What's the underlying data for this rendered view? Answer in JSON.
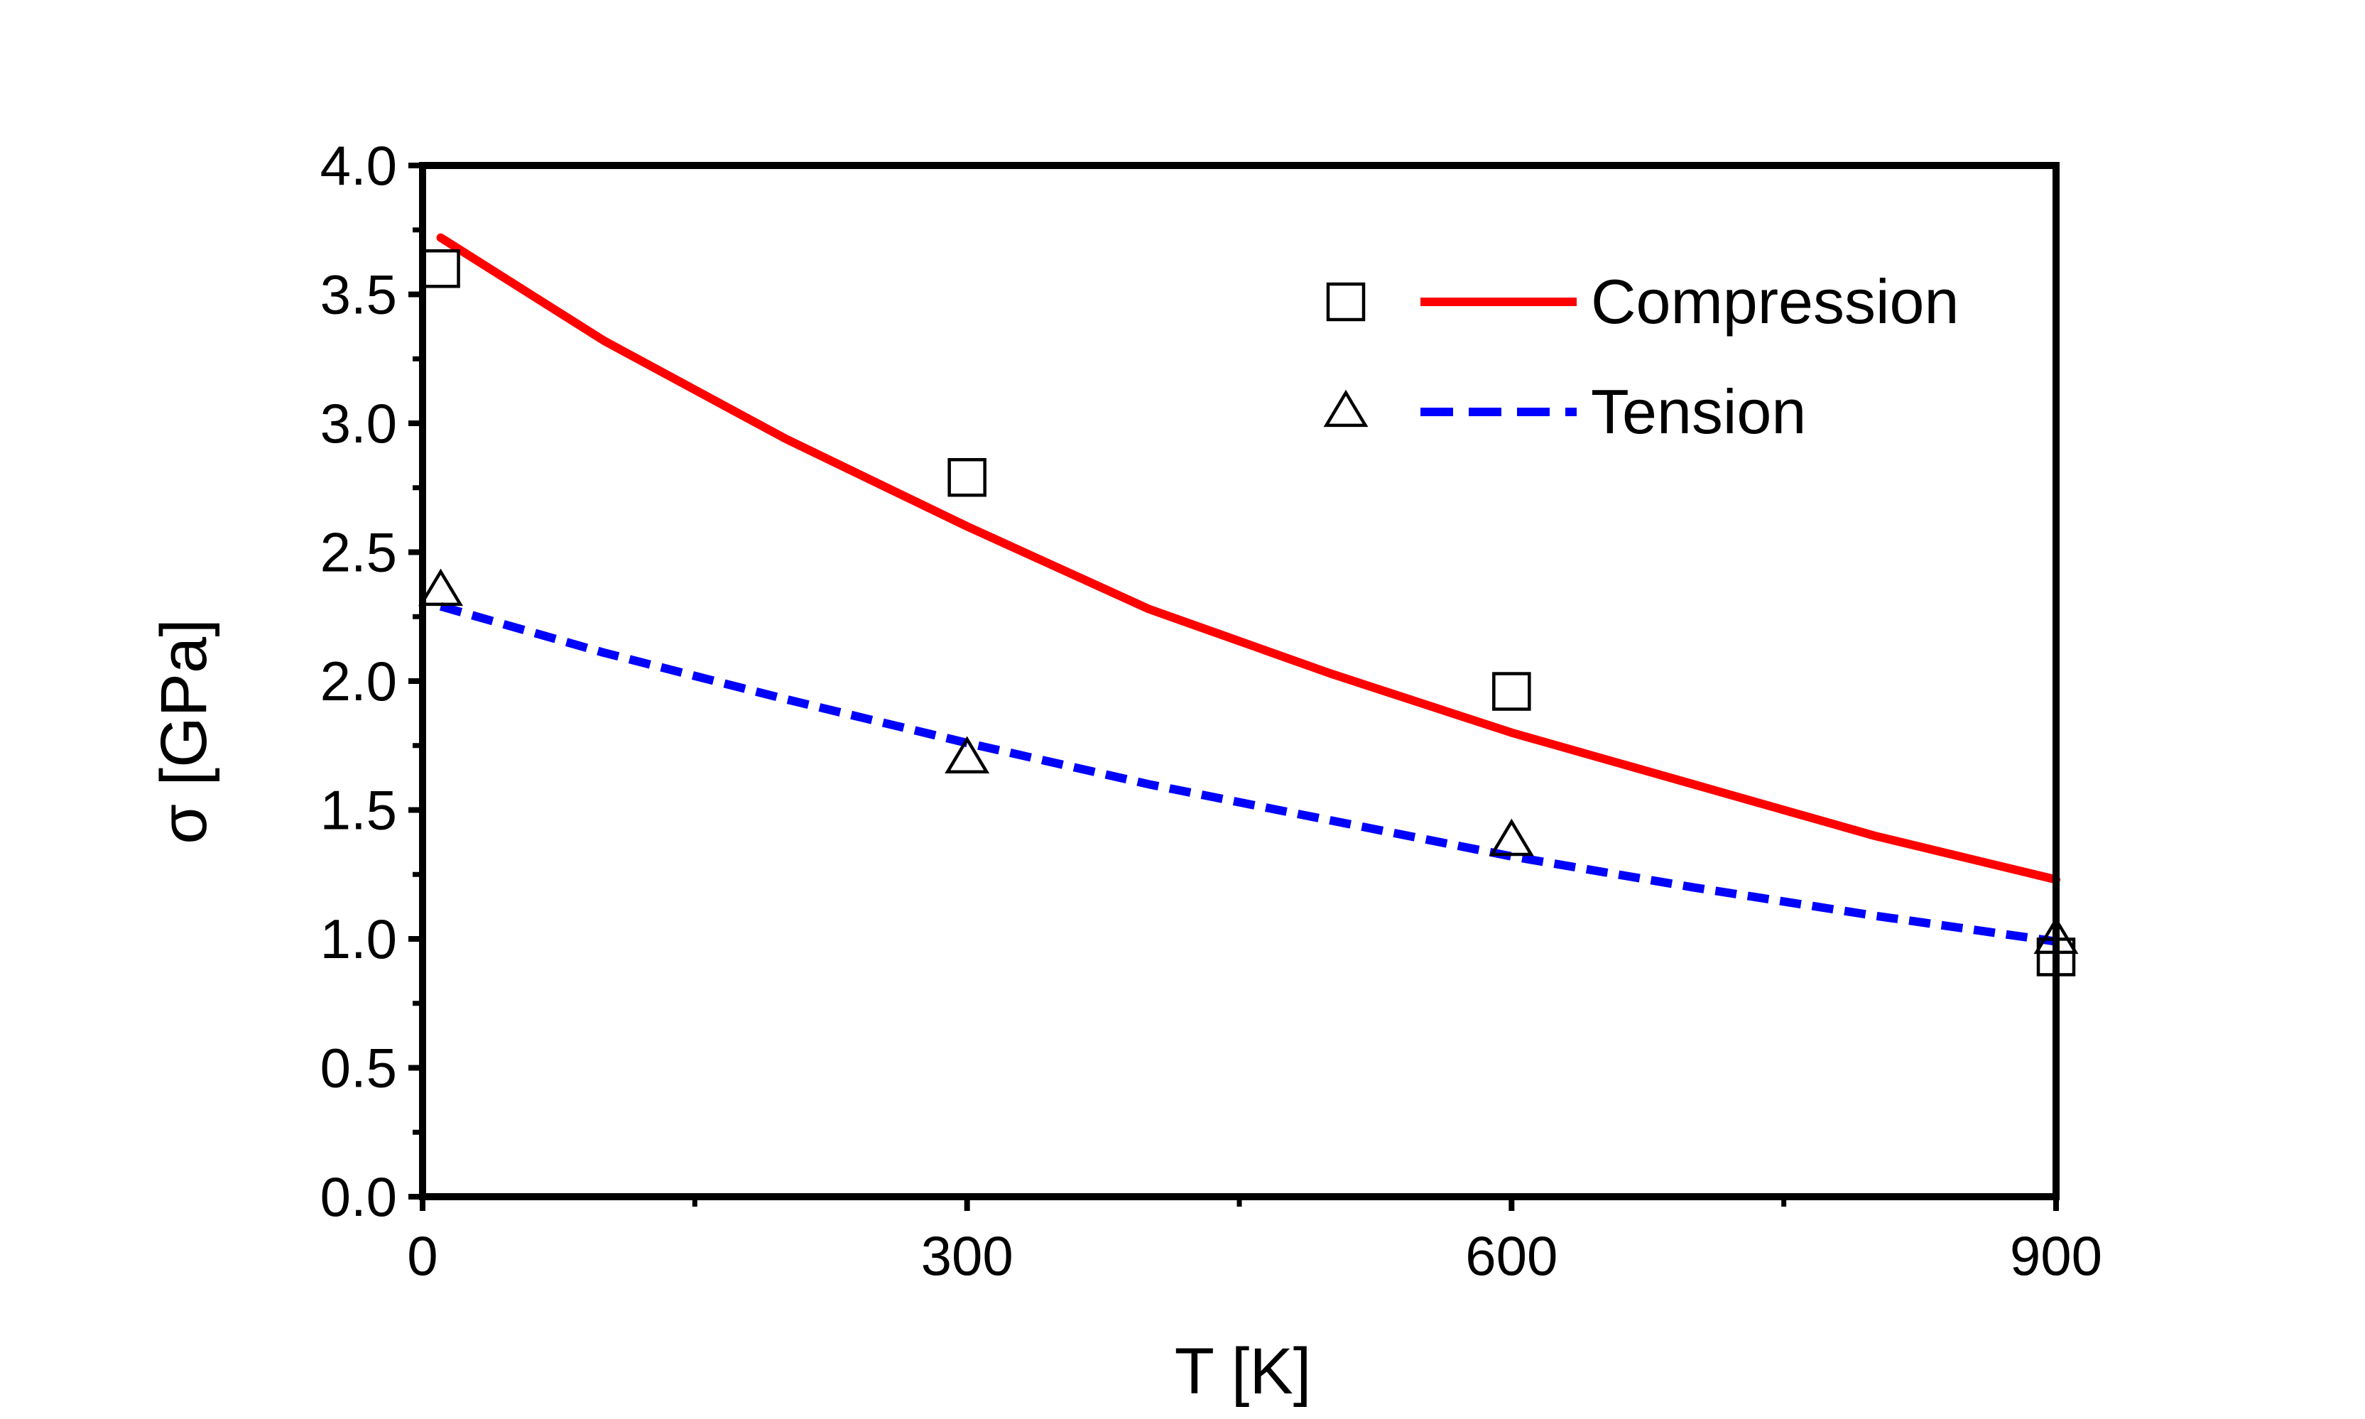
{
  "chart_data": {
    "type": "line",
    "title": "",
    "xlabel": "T [K]",
    "ylabel": "σ [GPa]",
    "xlim": [
      0,
      900
    ],
    "ylim": [
      0.0,
      4.0
    ],
    "xticks": [
      0,
      300,
      600,
      900
    ],
    "xtick_labels": [
      "0",
      "300",
      "600",
      "900"
    ],
    "yticks": [
      0.0,
      0.5,
      1.0,
      1.5,
      2.0,
      2.5,
      3.0,
      3.5,
      4.0
    ],
    "ytick_labels": [
      "0.0",
      "0.5",
      "1.0",
      "1.5",
      "2.0",
      "2.5",
      "3.0",
      "3.5",
      "4.0"
    ],
    "grid": false,
    "legend": "top-right",
    "series": [
      {
        "name": "Compression",
        "marker": "square",
        "points_x": [
          10,
          300,
          600,
          900
        ],
        "points_y": [
          3.6,
          2.79,
          1.96,
          0.93
        ],
        "fit_x": [
          10,
          100,
          200,
          300,
          400,
          500,
          600,
          700,
          800,
          900
        ],
        "fit_y": [
          3.72,
          3.32,
          2.94,
          2.6,
          2.28,
          2.03,
          1.8,
          1.6,
          1.4,
          1.23
        ],
        "color": "#ff0000",
        "line_style": "solid"
      },
      {
        "name": "Tension",
        "marker": "triangle",
        "points_x": [
          10,
          300,
          600,
          900
        ],
        "points_y": [
          2.35,
          1.7,
          1.38,
          1.0
        ],
        "fit_x": [
          10,
          100,
          200,
          300,
          400,
          500,
          600,
          700,
          800,
          900
        ],
        "fit_y": [
          2.29,
          2.11,
          1.93,
          1.76,
          1.6,
          1.46,
          1.32,
          1.2,
          1.09,
          0.99
        ],
        "color": "#0000ff",
        "line_style": "dashed"
      }
    ]
  }
}
